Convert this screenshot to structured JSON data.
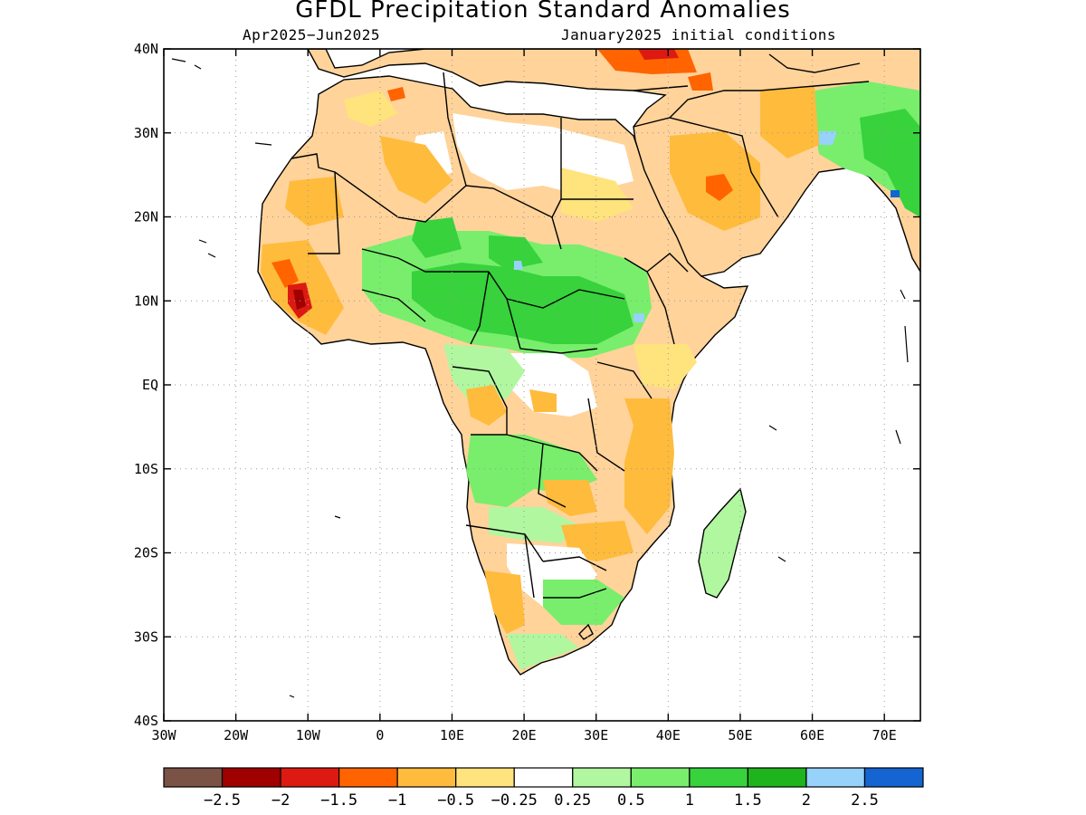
{
  "title": "GFDL Precipitation Standard Anomalies",
  "subtitle_left": "Apr2025−Jun2025",
  "subtitle_right": "January2025 initial conditions",
  "map": {
    "lon_range": [
      -30,
      75
    ],
    "lat_range": [
      -40,
      40
    ],
    "lat_ticks": [
      {
        "value": 40,
        "label": "40N"
      },
      {
        "value": 30,
        "label": "30N"
      },
      {
        "value": 20,
        "label": "20N"
      },
      {
        "value": 10,
        "label": "10N"
      },
      {
        "value": 0,
        "label": "EQ"
      },
      {
        "value": -10,
        "label": "10S"
      },
      {
        "value": -20,
        "label": "20S"
      },
      {
        "value": -30,
        "label": "30S"
      },
      {
        "value": -40,
        "label": "40S"
      }
    ],
    "lon_ticks": [
      {
        "value": -30,
        "label": "30W"
      },
      {
        "value": -20,
        "label": "20W"
      },
      {
        "value": -10,
        "label": "10W"
      },
      {
        "value": 0,
        "label": "0"
      },
      {
        "value": 10,
        "label": "10E"
      },
      {
        "value": 20,
        "label": "20E"
      },
      {
        "value": 30,
        "label": "30E"
      },
      {
        "value": 40,
        "label": "40E"
      },
      {
        "value": 50,
        "label": "50E"
      },
      {
        "value": 60,
        "label": "60E"
      },
      {
        "value": 70,
        "label": "70E"
      }
    ],
    "grid": true
  },
  "colorbar": {
    "colors": [
      "#7a5246",
      "#a00000",
      "#dd1a12",
      "#ff6400",
      "#ffbb3c",
      "#ffe37d",
      "#ffffff",
      "#b0f7a0",
      "#78ee6c",
      "#37d23c",
      "#1eb41e",
      "#96d2fa",
      "#1464d2"
    ],
    "labels": [
      "−2.5",
      "−2",
      "−1.5",
      "−1",
      "−0.5",
      "−0.25",
      "0.25",
      "0.5",
      "1",
      "1.5",
      "2",
      "2.5"
    ]
  }
}
